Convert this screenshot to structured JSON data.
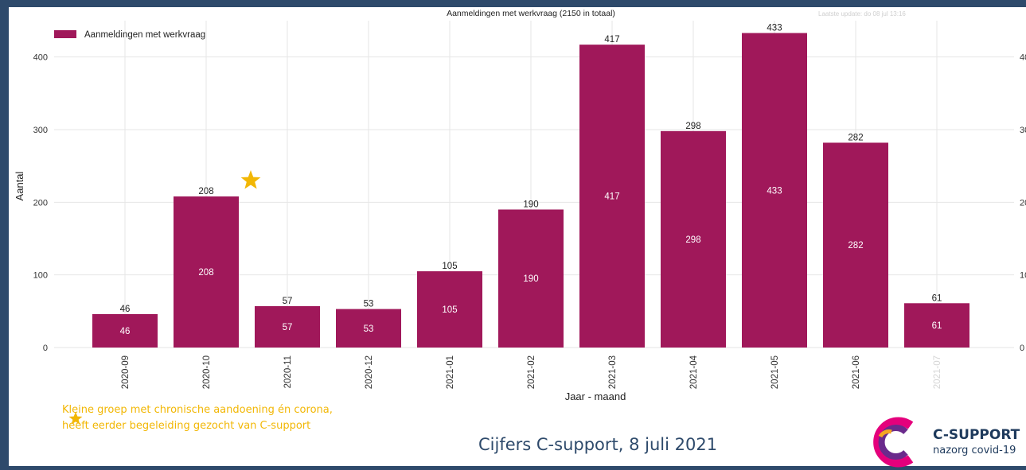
{
  "chart_data": {
    "type": "bar",
    "title": "Aanmeldingen met werkvraag (2150 in totaal)",
    "update_note": "Laatste update: do 08 jul 13:16",
    "xlabel": "Jaar - maand",
    "ylabel": "Aantal",
    "ylim": [
      0,
      450
    ],
    "yticks": [
      0,
      100,
      200,
      300,
      400
    ],
    "grid": true,
    "legend": "top-left",
    "series": [
      {
        "name": "Aanmeldingen met werkvraag",
        "color": "#a0185a",
        "values": [
          46,
          208,
          57,
          53,
          105,
          190,
          417,
          298,
          433,
          282,
          61
        ]
      }
    ],
    "categories": [
      "2020-09",
      "2020-10",
      "2020-11",
      "2020-12",
      "2021-01",
      "2021-02",
      "2021-03",
      "2021-04",
      "2021-05",
      "2021-06",
      "2021-07"
    ],
    "annotation": {
      "category": "2020-10",
      "icon": "star-icon",
      "color": "#f2b705"
    }
  },
  "footnote": {
    "line1": "Kleine groep met chronische aandoening  én corona,",
    "line2": "heeft eerder begeleiding gezocht van C-support",
    "icon": "star-icon"
  },
  "caption": "Cijfers C-support, 8 juli 2021",
  "logo": {
    "brand": "C-SUPPORT",
    "sub": "nazorg covid-19",
    "colors": [
      "#e4007c",
      "#6a2a8c",
      "#f5a623",
      "#1e3a5c"
    ]
  }
}
